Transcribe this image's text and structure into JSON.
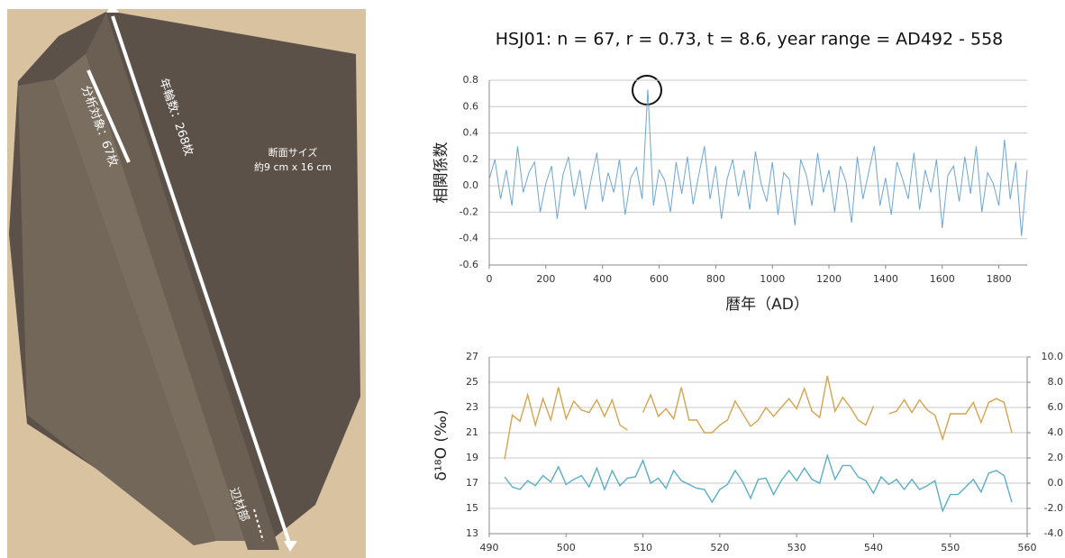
{
  "photo": {
    "labels": [
      "年輪数：268枚",
      "分析対象：67枚",
      "断面サイズ",
      "約9 cm x 16 cm",
      "辺材部"
    ]
  },
  "chart_data": [
    {
      "type": "line",
      "title": "HSJ01: n = 67,  r = 0.73,  t = 8.6,  year range = AD492 - 558",
      "y_label": "相関係数",
      "x_label": "暦年（AD）",
      "x": [
        0,
        20,
        40,
        60,
        80,
        100,
        120,
        140,
        160,
        180,
        200,
        220,
        240,
        260,
        280,
        300,
        320,
        340,
        360,
        380,
        400,
        420,
        440,
        460,
        480,
        500,
        520,
        540,
        560,
        580,
        600,
        620,
        640,
        660,
        680,
        700,
        720,
        740,
        760,
        780,
        800,
        820,
        840,
        860,
        880,
        900,
        920,
        940,
        960,
        980,
        1000,
        1020,
        1040,
        1060,
        1080,
        1100,
        1120,
        1140,
        1160,
        1180,
        1200,
        1220,
        1240,
        1260,
        1280,
        1300,
        1320,
        1340,
        1360,
        1380,
        1400,
        1420,
        1440,
        1460,
        1480,
        1500,
        1520,
        1540,
        1560,
        1580,
        1600,
        1620,
        1640,
        1660,
        1680,
        1700,
        1720,
        1740,
        1760,
        1780,
        1800,
        1820,
        1840,
        1860,
        1880,
        1900
      ],
      "series": [
        {
          "color": "#6ea6d6",
          "values": [
            0.05,
            0.2,
            -0.1,
            0.12,
            -0.15,
            0.3,
            -0.05,
            0.1,
            0.18,
            -0.2,
            0.02,
            0.15,
            -0.25,
            0.08,
            0.22,
            -0.08,
            0.12,
            -0.18,
            0.05,
            0.25,
            -0.12,
            0.1,
            -0.05,
            0.2,
            -0.22,
            0.06,
            0.14,
            -0.1,
            0.73,
            -0.15,
            0.12,
            0.04,
            -0.2,
            0.18,
            -0.06,
            0.22,
            -0.14,
            0.08,
            0.3,
            -0.1,
            0.15,
            -0.25,
            0.05,
            0.2,
            -0.08,
            0.12,
            -0.18,
            0.26,
            0.02,
            -0.12,
            0.18,
            -0.22,
            0.1,
            0.05,
            -0.3,
            0.2,
            0.08,
            -0.15,
            0.25,
            -0.05,
            0.12,
            -0.2,
            0.15,
            0.03,
            -0.28,
            0.22,
            -0.1,
            0.1,
            0.3,
            -0.15,
            0.06,
            -0.22,
            0.18,
            0.05,
            -0.1,
            0.25,
            -0.18,
            0.12,
            -0.05,
            0.2,
            -0.32,
            0.08,
            0.15,
            -0.12,
            0.22,
            -0.06,
            0.3,
            -0.2,
            0.1,
            0.02,
            -0.15,
            0.35,
            -0.1,
            0.18,
            -0.38,
            0.12
          ]
        }
      ],
      "xlim": [
        0,
        1900
      ],
      "xticks": [
        0,
        200,
        400,
        600,
        800,
        1000,
        1200,
        1400,
        1600,
        1800
      ],
      "ylim": [
        -0.6,
        0.8
      ],
      "yticks": [
        0.8,
        0.6,
        0.4,
        0.2,
        {
          "value": 0,
          "label": "0.0"
        },
        -0.2,
        -0.4,
        -0.6
      ],
      "grid": true
    },
    {
      "type": "line",
      "y_label": "δ¹⁸O (‰)",
      "x": [
        492,
        493,
        494,
        495,
        496,
        497,
        498,
        499,
        500,
        501,
        502,
        503,
        504,
        505,
        506,
        507,
        508,
        509,
        510,
        511,
        512,
        513,
        514,
        515,
        516,
        517,
        518,
        519,
        520,
        521,
        522,
        523,
        524,
        525,
        526,
        527,
        528,
        529,
        530,
        531,
        532,
        533,
        534,
        535,
        536,
        537,
        538,
        539,
        540,
        541,
        542,
        543,
        544,
        545,
        546,
        547,
        548,
        549,
        550,
        551,
        552,
        553,
        554,
        555,
        556,
        557,
        558
      ],
      "series": [
        {
          "color": "#d6a34e",
          "values": [
            18.9,
            22.4,
            21.9,
            24.0,
            21.6,
            23.7,
            22.0,
            24.6,
            22.1,
            23.5,
            22.8,
            22.6,
            23.6,
            22.3,
            23.6,
            21.6,
            21.2,
            null,
            22.6,
            24.0,
            22.3,
            22.9,
            22.1,
            24.6,
            22.0,
            22.0,
            21.0,
            21.0,
            21.6,
            22.0,
            23.5,
            22.5,
            21.5,
            22.0,
            23.0,
            22.3,
            23.0,
            23.7,
            22.9,
            24.5,
            22.7,
            22.2,
            25.5,
            22.7,
            23.8,
            23.0,
            22.0,
            21.6,
            23.1,
            null,
            22.5,
            22.7,
            23.6,
            22.6,
            23.6,
            22.8,
            22.4,
            20.5,
            22.5,
            22.5,
            22.5,
            23.4,
            21.8,
            23.4,
            23.7,
            23.4,
            21.0
          ]
        },
        {
          "color": "#5aaec6",
          "axis": "y2",
          "values": [
            0.5,
            -0.3,
            -0.5,
            0.2,
            -0.2,
            0.6,
            0.1,
            1.3,
            -0.1,
            0.3,
            0.6,
            -0.3,
            1.2,
            -0.5,
            1.0,
            -0.2,
            0.4,
            0.5,
            1.8,
            0,
            0.4,
            -0.4,
            1.0,
            0.2,
            -0.1,
            -0.4,
            -0.5,
            -1.5,
            -0.5,
            -0.1,
            1.0,
            0.1,
            -1.2,
            0.3,
            0.4,
            -0.9,
            0.2,
            1.0,
            0.2,
            1.2,
            0.3,
            0,
            2.2,
            0.3,
            1.4,
            1.4,
            0.5,
            0.2,
            -0.8,
            0.5,
            -0.1,
            0.3,
            -0.5,
            0.3,
            -0.5,
            -0.2,
            0.2,
            -2.2,
            -0.9,
            -0.9,
            -0.3,
            0.3,
            -0.7,
            0.8,
            1.0,
            0.6,
            -1.5
          ]
        }
      ],
      "xlim": [
        490,
        560
      ],
      "xticks": [
        490,
        500,
        510,
        520,
        530,
        540,
        550,
        560
      ],
      "ylim": [
        13,
        27
      ],
      "yticks": [
        27,
        25,
        23,
        21,
        19,
        17,
        15,
        13
      ],
      "y2lim": [
        -4,
        10
      ],
      "y2ticks": [
        {
          "value": 10,
          "label": "10.0"
        },
        {
          "value": 8,
          "label": "8.0"
        },
        {
          "value": 6,
          "label": "6.0"
        },
        {
          "value": 4,
          "label": "4.0"
        },
        {
          "value": 2,
          "label": "2.0"
        },
        {
          "value": 0,
          "label": "0.0"
        },
        {
          "value": -2,
          "label": "-2.0"
        },
        {
          "value": -4,
          "label": "-4.0"
        }
      ],
      "grid": true
    }
  ]
}
